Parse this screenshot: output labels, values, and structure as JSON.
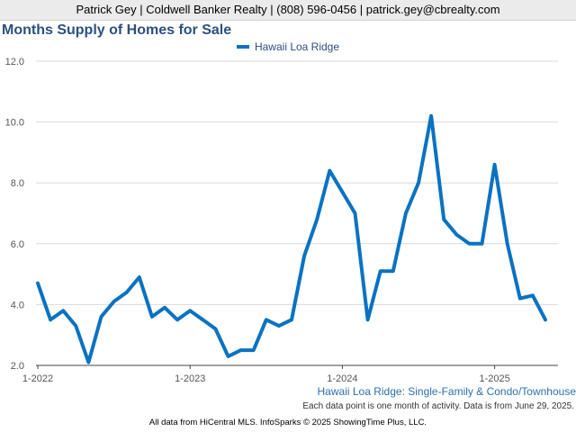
{
  "header": {
    "text": "Patrick Gey | Coldwell Banker Realty | (808) 596-0456 | patrick.gey@cbrealty.com"
  },
  "chart_data": {
    "type": "line",
    "title": "Months Supply of Homes for Sale",
    "subtitle": "Hawaii Loa Ridge: Single-Family & Condo/Townhouse",
    "note": "Each data point is one month of activity. Data is from June 29, 2025.",
    "legend_position": "top-center",
    "grid": true,
    "xlabel": "",
    "ylabel": "",
    "ylim": [
      2.0,
      12.0
    ],
    "y_ticks": [
      "2.0",
      "4.0",
      "6.0",
      "8.0",
      "10.0",
      "12.0"
    ],
    "x_ticks": [
      {
        "label": "1-2022",
        "index": 0
      },
      {
        "label": "1-2023",
        "index": 12
      },
      {
        "label": "1-2024",
        "index": 24
      },
      {
        "label": "1-2025",
        "index": 36
      }
    ],
    "x": [
      "2022-01",
      "2022-02",
      "2022-03",
      "2022-04",
      "2022-05",
      "2022-06",
      "2022-07",
      "2022-08",
      "2022-09",
      "2022-10",
      "2022-11",
      "2022-12",
      "2023-01",
      "2023-02",
      "2023-03",
      "2023-04",
      "2023-05",
      "2023-06",
      "2023-07",
      "2023-08",
      "2023-09",
      "2023-10",
      "2023-11",
      "2023-12",
      "2024-01",
      "2024-02",
      "2024-03",
      "2024-04",
      "2024-05",
      "2024-06",
      "2024-07",
      "2024-08",
      "2024-09",
      "2024-10",
      "2024-11",
      "2024-12",
      "2025-01",
      "2025-02",
      "2025-03",
      "2025-04",
      "2025-05"
    ],
    "series": [
      {
        "name": "Hawaii Loa Ridge",
        "color": "#0a72c2",
        "values": [
          4.7,
          3.5,
          3.8,
          3.3,
          2.1,
          3.6,
          4.1,
          4.4,
          4.9,
          3.6,
          3.9,
          3.5,
          3.8,
          3.5,
          3.2,
          2.3,
          2.5,
          2.5,
          3.5,
          3.3,
          3.5,
          5.6,
          6.8,
          8.4,
          7.7,
          7.0,
          3.5,
          5.1,
          5.1,
          7.0,
          8.0,
          10.2,
          6.8,
          6.3,
          6.0,
          6.0,
          8.6,
          6.0,
          4.2,
          4.3,
          3.5
        ]
      }
    ]
  },
  "footer": {
    "text": "All data from HiCentral MLS. InfoSparks © 2025 ShowingTime Plus, LLC."
  }
}
